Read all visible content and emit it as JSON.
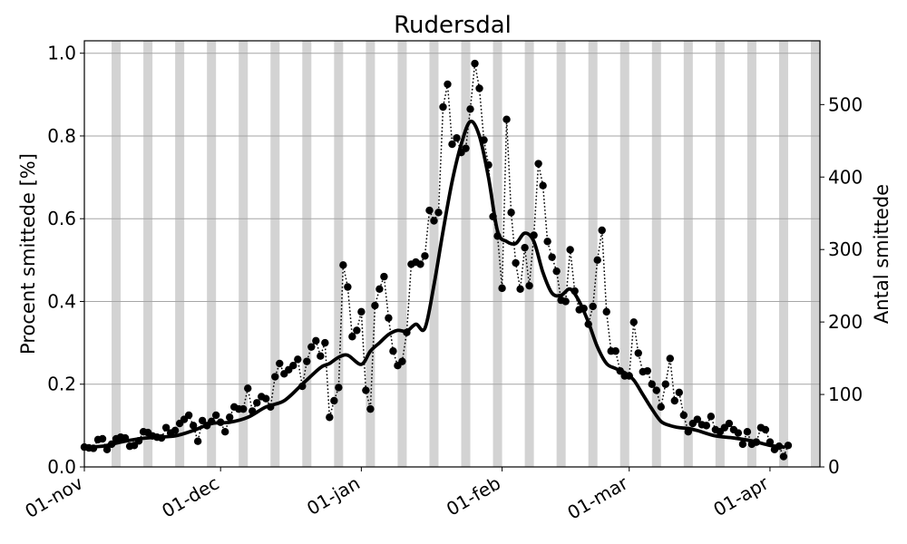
{
  "chart_data": {
    "type": "line",
    "title": "Rudersdal",
    "xlabel": "",
    "ylabel": "Procent smittede [%]",
    "y2label": "Antal smittede",
    "x_axis_type": "date",
    "xlim": [
      "2020-11-01",
      "2021-04-12"
    ],
    "ylim": [
      0,
      1.03
    ],
    "y2lim": [
      0,
      588
    ],
    "xticks": [
      {
        "date": "2020-11-01",
        "label": "01-nov"
      },
      {
        "date": "2020-12-01",
        "label": "01-dec"
      },
      {
        "date": "2021-01-01",
        "label": "01-jan"
      },
      {
        "date": "2021-02-01",
        "label": "01-feb"
      },
      {
        "date": "2021-03-01",
        "label": "01-mar"
      },
      {
        "date": "2021-04-01",
        "label": "01-apr"
      }
    ],
    "yticks": [
      {
        "value": 0.0,
        "label": "0.0"
      },
      {
        "value": 0.2,
        "label": "0.2"
      },
      {
        "value": 0.4,
        "label": "0.4"
      },
      {
        "value": 0.6,
        "label": "0.6"
      },
      {
        "value": 0.8,
        "label": "0.8"
      },
      {
        "value": 1.0,
        "label": "1.0"
      }
    ],
    "y2ticks": [
      {
        "value": 0,
        "label": "0"
      },
      {
        "value": 100,
        "label": "100"
      },
      {
        "value": 200,
        "label": "200"
      },
      {
        "value": 300,
        "label": "300"
      },
      {
        "value": 400,
        "label": "400"
      },
      {
        "value": 500,
        "label": "500"
      }
    ],
    "grid": "horizontal",
    "weekend_bands": [
      "2020-11-07",
      "2020-11-14",
      "2020-11-21",
      "2020-11-28",
      "2020-12-05",
      "2020-12-12",
      "2020-12-19",
      "2020-12-26",
      "2021-01-02",
      "2021-01-09",
      "2021-01-16",
      "2021-01-23",
      "2021-01-30",
      "2021-02-06",
      "2021-02-13",
      "2021-02-20",
      "2021-02-27",
      "2021-03-06",
      "2021-03-13",
      "2021-03-20",
      "2021-03-27",
      "2021-04-03",
      "2021-04-10"
    ],
    "series": [
      {
        "style": "dotted line with dot markers",
        "color": "#000000",
        "start_date": "2020-11-01",
        "step": "1 day",
        "values": [
          0.048,
          0.046,
          0.045,
          0.066,
          0.068,
          0.042,
          0.055,
          0.068,
          0.072,
          0.07,
          0.05,
          0.052,
          0.063,
          0.085,
          0.083,
          0.075,
          0.072,
          0.07,
          0.095,
          0.082,
          0.088,
          0.105,
          0.115,
          0.125,
          0.1,
          0.062,
          0.112,
          0.1,
          0.11,
          0.125,
          0.108,
          0.085,
          0.12,
          0.145,
          0.14,
          0.14,
          0.19,
          0.135,
          0.155,
          0.17,
          0.165,
          0.145,
          0.218,
          0.25,
          0.225,
          0.235,
          0.245,
          0.26,
          0.195,
          0.255,
          0.29,
          0.305,
          0.268,
          0.3,
          0.12,
          0.16,
          0.192,
          0.488,
          0.435,
          0.315,
          0.33,
          0.375,
          0.185,
          0.14,
          0.39,
          0.43,
          0.46,
          0.36,
          0.28,
          0.245,
          0.255,
          0.325,
          0.49,
          0.495,
          0.49,
          0.51,
          0.62,
          0.595,
          0.615,
          0.87,
          0.925,
          0.78,
          0.795,
          0.76,
          0.77,
          0.865,
          0.975,
          0.915,
          0.79,
          0.73,
          0.605,
          0.558,
          0.432,
          0.84,
          0.615,
          0.493,
          0.43,
          0.53,
          0.438,
          0.56,
          0.733,
          0.68,
          0.545,
          0.507,
          0.473,
          0.403,
          0.4,
          0.525,
          0.425,
          0.38,
          0.383,
          0.345,
          0.388,
          0.5,
          0.572,
          0.375,
          0.28,
          0.28,
          0.232,
          0.22,
          0.22,
          0.35,
          0.275,
          0.23,
          0.232,
          0.2,
          0.185,
          0.145,
          0.2,
          0.262,
          0.16,
          0.18,
          0.125,
          0.085,
          0.105,
          0.115,
          0.102,
          0.1,
          0.122,
          0.09,
          0.085,
          0.095,
          0.105,
          0.09,
          0.082,
          0.055,
          0.085,
          0.055,
          0.06,
          0.095,
          0.09,
          0.06,
          0.042,
          0.05,
          0.025,
          0.052
        ]
      },
      {
        "style": "thick solid line",
        "color": "#000000",
        "dates": [
          "2020-11-01",
          "2020-11-05",
          "2020-11-09",
          "2020-11-13",
          "2020-11-17",
          "2020-11-21",
          "2020-11-25",
          "2020-11-29",
          "2020-12-03",
          "2020-12-07",
          "2020-12-11",
          "2020-12-15",
          "2020-12-19",
          "2020-12-23",
          "2020-12-25",
          "2020-12-27",
          "2020-12-29",
          "2021-01-01",
          "2021-01-03",
          "2021-01-05",
          "2021-01-07",
          "2021-01-09",
          "2021-01-11",
          "2021-01-13",
          "2021-01-15",
          "2021-01-17",
          "2021-01-19",
          "2021-01-21",
          "2021-01-23",
          "2021-01-25",
          "2021-01-27",
          "2021-01-29",
          "2021-01-31",
          "2021-02-02",
          "2021-02-04",
          "2021-02-06",
          "2021-02-08",
          "2021-02-10",
          "2021-02-12",
          "2021-02-14",
          "2021-02-16",
          "2021-02-18",
          "2021-02-20",
          "2021-02-22",
          "2021-02-24",
          "2021-02-26",
          "2021-02-28",
          "2021-03-02",
          "2021-03-04",
          "2021-03-06",
          "2021-03-08",
          "2021-03-10",
          "2021-03-12",
          "2021-03-14",
          "2021-03-16",
          "2021-03-20",
          "2021-03-24",
          "2021-03-28",
          "2021-04-01",
          "2021-04-04"
        ],
        "values": [
          0.048,
          0.05,
          0.06,
          0.068,
          0.072,
          0.075,
          0.088,
          0.105,
          0.108,
          0.12,
          0.145,
          0.16,
          0.2,
          0.24,
          0.25,
          0.265,
          0.27,
          0.248,
          0.28,
          0.3,
          0.32,
          0.33,
          0.328,
          0.345,
          0.335,
          0.44,
          0.57,
          0.69,
          0.78,
          0.835,
          0.8,
          0.7,
          0.57,
          0.545,
          0.54,
          0.565,
          0.545,
          0.47,
          0.42,
          0.415,
          0.43,
          0.4,
          0.35,
          0.29,
          0.25,
          0.238,
          0.228,
          0.21,
          0.175,
          0.14,
          0.11,
          0.1,
          0.095,
          0.093,
          0.088,
          0.075,
          0.07,
          0.063,
          0.052,
          0.048
        ]
      }
    ]
  }
}
